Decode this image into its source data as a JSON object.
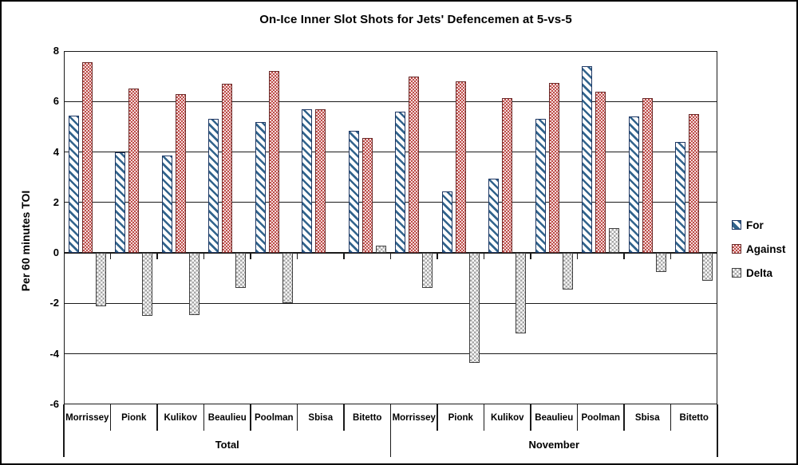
{
  "colors": {
    "for_stripe": "#31638C",
    "for_border": "#1F3864",
    "against_red": "#BE4B48",
    "against_bg": "#F2DCDB",
    "against_border": "#6B2A29",
    "delta_gray": "#A6A6A6",
    "delta_border": "#404040",
    "grid": "#1A1A1A",
    "text": "#000000"
  },
  "legend": {
    "position": "right",
    "items": [
      {
        "label": "For",
        "swatch": "for"
      },
      {
        "label": "Against",
        "swatch": "against"
      },
      {
        "label": "Delta",
        "swatch": "delta"
      }
    ]
  },
  "chart_data": {
    "type": "bar",
    "title": "On-Ice Inner Slot Shots for Jets' Defencemen at 5-vs-5",
    "xlabel": "",
    "ylabel": "Per 60 minutes TOI",
    "ylim": [
      -6,
      8
    ],
    "yticks": [
      8,
      6,
      4,
      2,
      0,
      -2,
      -4,
      -6
    ],
    "grid": true,
    "legend_position": "right",
    "groups": [
      {
        "label": "Total",
        "categories": [
          "Morrissey",
          "Pionk",
          "Kulikov",
          "Beaulieu",
          "Poolman",
          "Sbisa",
          "Bitetto"
        ],
        "series": [
          {
            "name": "For",
            "values": [
              5.45,
              4.0,
              3.85,
              5.3,
              5.2,
              5.7,
              4.85
            ]
          },
          {
            "name": "Against",
            "values": [
              7.55,
              6.5,
              6.3,
              6.7,
              7.2,
              5.7,
              4.55
            ]
          },
          {
            "name": "Delta",
            "values": [
              -2.1,
              -2.5,
              -2.45,
              -1.4,
              -2.0,
              0,
              0.3
            ]
          }
        ]
      },
      {
        "label": "November",
        "categories": [
          "Morrissey",
          "Pionk",
          "Kulikov",
          "Beaulieu",
          "Poolman",
          "Sbisa",
          "Bitetto"
        ],
        "series": [
          {
            "name": "For",
            "values": [
              5.6,
              2.45,
              2.95,
              5.3,
              7.4,
              5.4,
              4.4
            ]
          },
          {
            "name": "Against",
            "values": [
              7.0,
              6.8,
              6.15,
              6.75,
              6.4,
              6.15,
              5.5
            ]
          },
          {
            "name": "Delta",
            "values": [
              -1.4,
              -4.35,
              -3.2,
              -1.45,
              1.0,
              -0.75,
              -1.1
            ]
          }
        ]
      }
    ]
  }
}
